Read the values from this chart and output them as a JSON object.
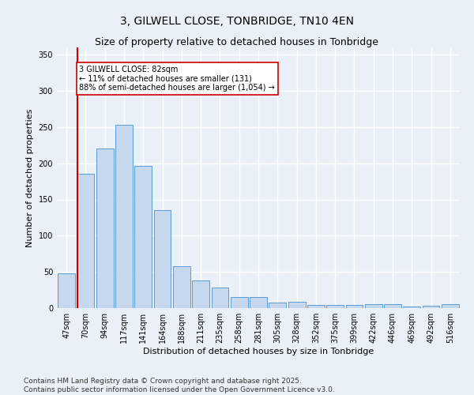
{
  "title": "3, GILWELL CLOSE, TONBRIDGE, TN10 4EN",
  "subtitle": "Size of property relative to detached houses in Tonbridge",
  "xlabel": "Distribution of detached houses by size in Tonbridge",
  "ylabel": "Number of detached properties",
  "categories": [
    "47sqm",
    "70sqm",
    "94sqm",
    "117sqm",
    "141sqm",
    "164sqm",
    "188sqm",
    "211sqm",
    "235sqm",
    "258sqm",
    "281sqm",
    "305sqm",
    "328sqm",
    "352sqm",
    "375sqm",
    "399sqm",
    "422sqm",
    "446sqm",
    "469sqm",
    "492sqm",
    "516sqm"
  ],
  "values": [
    48,
    185,
    220,
    253,
    196,
    135,
    58,
    38,
    28,
    15,
    15,
    8,
    9,
    4,
    4,
    4,
    6,
    5,
    2,
    3,
    6
  ],
  "bar_color": "#c5d8ed",
  "bar_edge_color": "#5b9bd5",
  "ylim": [
    0,
    360
  ],
  "yticks": [
    0,
    50,
    100,
    150,
    200,
    250,
    300,
    350
  ],
  "property_line_color": "#cc0000",
  "annotation_text": "3 GILWELL CLOSE: 82sqm\n← 11% of detached houses are smaller (131)\n88% of semi-detached houses are larger (1,054) →",
  "annotation_box_color": "#ffffff",
  "annotation_box_edge_color": "#cc0000",
  "footer_text": "Contains HM Land Registry data © Crown copyright and database right 2025.\nContains public sector information licensed under the Open Government Licence v3.0.",
  "bg_color": "#eaf0f8",
  "plot_bg_color": "#eaf0f8",
  "grid_color": "#ffffff",
  "title_fontsize": 10,
  "subtitle_fontsize": 9,
  "axis_label_fontsize": 8,
  "tick_fontsize": 7,
  "footer_fontsize": 6.5
}
